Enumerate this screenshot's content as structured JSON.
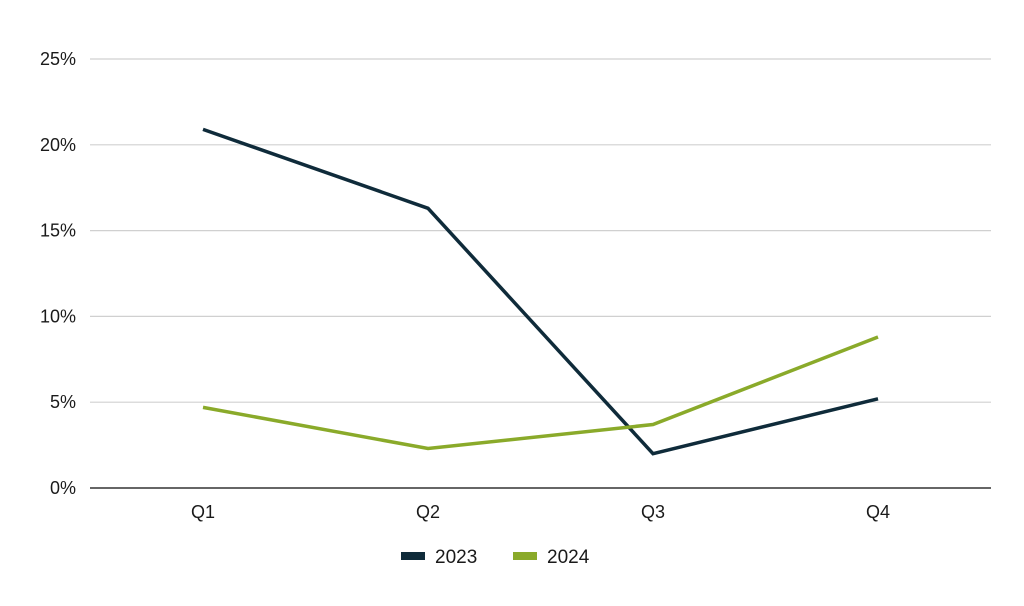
{
  "chart_data": {
    "type": "line",
    "categories": [
      "Q1",
      "Q2",
      "Q3",
      "Q4"
    ],
    "series": [
      {
        "name": "2023",
        "values": [
          20.9,
          16.3,
          2.0,
          5.2
        ],
        "color": "#0f2b3a"
      },
      {
        "name": "2024",
        "values": [
          4.7,
          2.3,
          3.7,
          8.8
        ],
        "color": "#8aaa2a"
      }
    ],
    "ylim": [
      0,
      25
    ],
    "y_ticks": [
      {
        "value": 0,
        "label": "0%"
      },
      {
        "value": 5,
        "label": "5%"
      },
      {
        "value": 10,
        "label": "10%"
      },
      {
        "value": 15,
        "label": "15%"
      },
      {
        "value": 20,
        "label": "20%"
      },
      {
        "value": 25,
        "label": "25%"
      }
    ],
    "title": "",
    "xlabel": "",
    "ylabel": "",
    "grid": "horizontal",
    "legend_position": "bottom-center",
    "colors": {
      "grid": "#d0d0d0",
      "axis": "#333333"
    }
  }
}
